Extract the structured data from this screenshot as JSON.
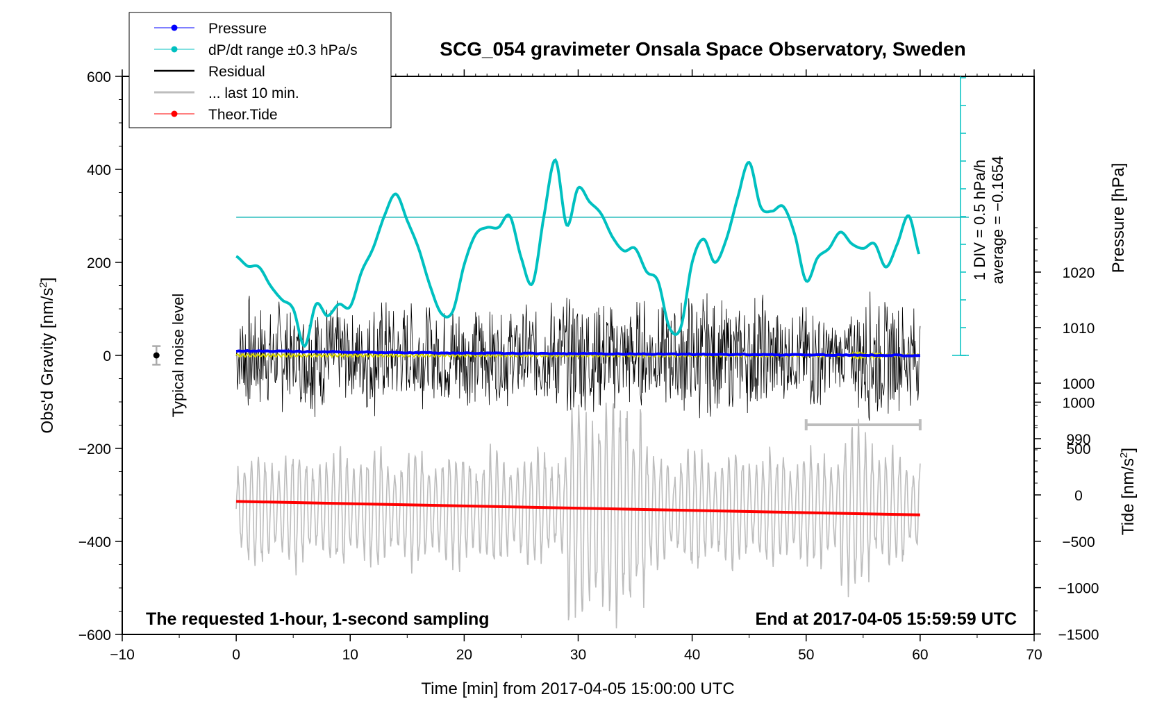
{
  "chart_data": {
    "type": "line",
    "title": "SCG_054 gravimeter Onsala Space Observatory, Sweden",
    "xlabel": "Time [min] from 2017-04-05 15:00:00 UTC",
    "ylabel_left": "Obs'd Gravity [nm/s",
    "ylabel_left_sup": "2",
    "ylabel_left_close": "]",
    "ylabel_right_pressure": "Pressure [hPa]",
    "ylabel_right_tide": "Tide [nm/s",
    "ylabel_right_tide_sup": "2",
    "ylabel_right_tide_close": "]",
    "xlim": [
      -10,
      70
    ],
    "ylim": [
      -600,
      600
    ],
    "pressure_lim": [
      978,
      1030
    ],
    "tide_lim": [
      -1500,
      1000
    ],
    "x_ticks": [
      -10,
      0,
      10,
      20,
      30,
      40,
      50,
      60,
      70
    ],
    "x_tick_labels": [
      "−10",
      "0",
      "10",
      "20",
      "30",
      "40",
      "50",
      "60",
      "70"
    ],
    "y_ticks": [
      -600,
      -400,
      -200,
      0,
      200,
      400,
      600
    ],
    "y_tick_labels": [
      "−600",
      "−400",
      "−200",
      "0",
      "200",
      "400",
      "600"
    ],
    "pressure_ticks": [
      990,
      1000,
      1010,
      1020
    ],
    "pressure_tick_labels": [
      "990",
      "1000",
      "1010",
      "1020"
    ],
    "tide_ticks": [
      -1500,
      -1000,
      -500,
      0,
      500,
      1000
    ],
    "tide_tick_labels": [
      "−1500",
      "−1000",
      "−500",
      "0",
      "500",
      "1000"
    ],
    "legend": [
      {
        "label": "Pressure",
        "color": "#0000ff",
        "marker": true
      },
      {
        "label": "dP/dt range ±0.3 hPa/s",
        "color": "#00c0c0",
        "marker": true
      },
      {
        "label": "Residual",
        "color": "#000000",
        "marker": false
      },
      {
        "label": "... last 10 min.",
        "color": "#bdbdbd",
        "marker": false
      },
      {
        "label": "Theor.Tide",
        "color": "#ff0000",
        "marker": true
      }
    ],
    "dpdt_scale_label": "1 DIV = 0.5 hPa/h",
    "dpdt_average_label": "average = −0.1654",
    "noise_label": "Typical noise level",
    "noise_value": 0,
    "noise_error": 20,
    "note_left": "The requested 1-hour, 1-second sampling",
    "note_right": "End at 2017-04-05 15:59:59 UTC",
    "last10_bar": [
      50,
      60
    ],
    "series": [
      {
        "name": "Pressure",
        "unit": "hPa",
        "color": "#0000ff",
        "x": [
          0,
          10,
          20,
          30,
          40,
          50,
          60
        ],
        "values": [
          1005.8,
          1005.6,
          1005.4,
          1005.3,
          1005.2,
          1005.1,
          1005.0
        ]
      },
      {
        "name": "dP/dt",
        "unit": "nm/s2-axis",
        "color": "#00c0c0",
        "x": [
          0,
          1,
          2,
          3,
          4,
          5,
          6,
          7,
          8,
          9,
          10,
          11,
          12,
          13,
          14,
          15,
          16,
          17,
          18,
          19,
          20,
          21,
          22,
          23,
          24,
          25,
          26,
          27,
          28,
          29,
          30,
          31,
          32,
          33,
          34,
          35,
          36,
          37,
          38,
          39,
          40,
          41,
          42,
          43,
          44,
          45,
          46,
          47,
          48,
          49,
          50,
          51,
          52,
          53,
          54,
          55,
          56,
          57,
          58,
          59,
          60
        ],
        "values": [
          213,
          192,
          190,
          150,
          120,
          100,
          20,
          110,
          85,
          110,
          105,
          180,
          230,
          300,
          347,
          290,
          230,
          150,
          90,
          95,
          195,
          260,
          275,
          275,
          300,
          210,
          155,
          300,
          420,
          280,
          360,
          330,
          305,
          255,
          225,
          230,
          180,
          160,
          60,
          60,
          200,
          250,
          200,
          250,
          340,
          415,
          320,
          310,
          320,
          260,
          160,
          210,
          230,
          265,
          240,
          230,
          240,
          190,
          240,
          300,
          212
        ]
      },
      {
        "name": "Residual",
        "unit": "nm/s2",
        "color": "#000000",
        "amplitude_envelope": [
          100,
          140,
          120,
          110,
          130,
          90,
          120,
          150,
          120,
          130,
          90,
          110,
          140,
          130,
          100,
          120,
          120,
          110,
          100,
          130,
          110,
          130,
          110,
          100,
          120,
          110,
          120,
          110,
          140,
          130,
          150,
          160,
          130,
          120,
          120,
          130,
          130,
          110,
          120,
          130,
          140,
          140,
          130,
          120,
          110,
          130,
          150,
          110,
          100,
          90,
          120,
          140,
          80,
          70,
          90,
          140,
          160,
          140,
          120,
          120,
          100
        ]
      },
      {
        "name": "Residual last 10 min.",
        "unit": "nm/s2",
        "color": "#bdbdbd",
        "period_min": 0.6
      },
      {
        "name": "Theor.Tide",
        "unit": "nm/s2",
        "color": "#ff0000",
        "x": [
          0,
          60
        ],
        "values": [
          -314,
          -343
        ]
      }
    ]
  }
}
